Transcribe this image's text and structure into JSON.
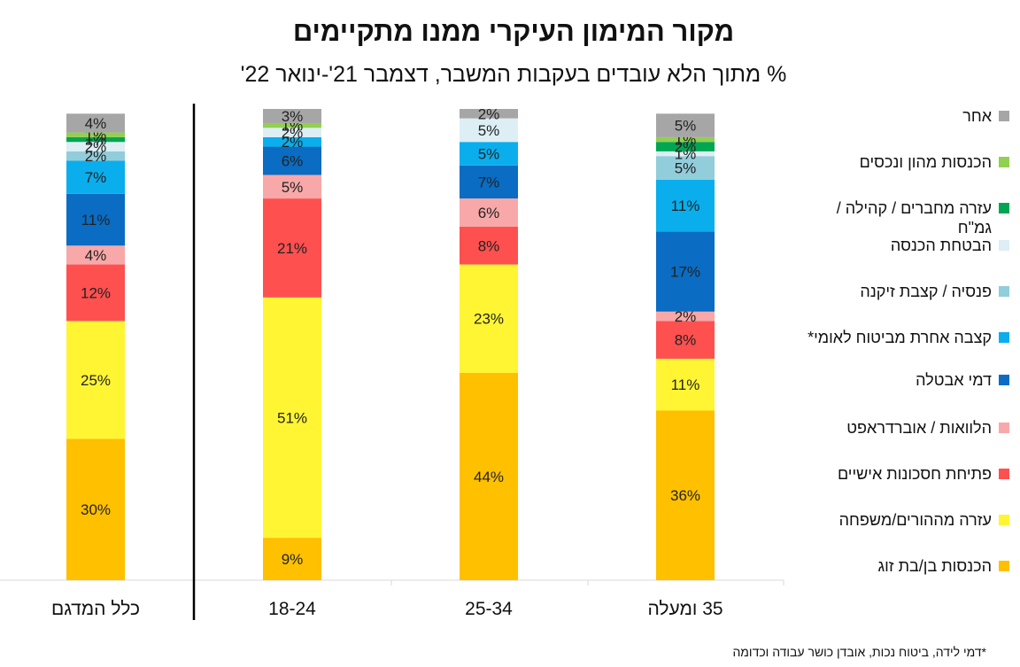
{
  "chart_data": {
    "type": "bar",
    "stacked": true,
    "title": "מקור המימון העיקרי ממנו מתקיימים",
    "subtitle": "% מתוך הלא עובדים בעקבות המשבר, דצמבר 21'-ינואר 22'",
    "categories": [
      "כלל המדגם",
      "18-24",
      "25-34",
      "35 ומעלה"
    ],
    "ylim": [
      0,
      100
    ],
    "legend_position": "right",
    "series": [
      {
        "name": "הכנסות בן/בת זוג",
        "color": "#FFC000",
        "values": [
          30,
          9,
          44,
          36
        ]
      },
      {
        "name": "עזרה מההורים/משפחה",
        "color": "#FFF533",
        "values": [
          25,
          51,
          23,
          11
        ]
      },
      {
        "name": "פתיחת חסכונות אישיים",
        "color": "#FF5050",
        "values": [
          12,
          21,
          8,
          8
        ]
      },
      {
        "name": "הלוואות / אוברדראפט",
        "color": "#F8A8A8",
        "values": [
          4,
          5,
          6,
          2
        ]
      },
      {
        "name": "דמי אבטלה",
        "color": "#0A6CC2",
        "values": [
          11,
          6,
          7,
          17
        ]
      },
      {
        "name": "קצבה אחרת מביטוח לאומי*",
        "color": "#0AAEEC",
        "values": [
          7,
          2,
          5,
          11
        ]
      },
      {
        "name": "פנסיה / קצבת זיקנה",
        "color": "#92CDDB",
        "values": [
          2,
          0,
          0,
          5
        ]
      },
      {
        "name": "הבטחת הכנסה",
        "color": "#DDEEF5",
        "values": [
          2,
          2,
          5,
          1
        ]
      },
      {
        "name": "עזרה מחברים / קהילה / גמ\"ח",
        "color": "#00A651",
        "values": [
          1,
          0,
          0,
          2
        ]
      },
      {
        "name": "הכנסות מהון ונכסים",
        "color": "#92D050",
        "values": [
          1,
          1,
          0,
          1
        ]
      },
      {
        "name": "אחר",
        "color": "#A6A6A6",
        "values": [
          4,
          3,
          2,
          5
        ]
      }
    ],
    "value_labels": {
      "unit": "%",
      "hidden": [
        {
          "series": 6,
          "category": 1
        },
        {
          "series": 6,
          "category": 2
        },
        {
          "series": 8,
          "category": 1
        },
        {
          "series": 8,
          "category": 2
        },
        {
          "series": 9,
          "category": 2
        }
      ]
    }
  },
  "footnote": "*דמי לידה, ביטוח נכות, אובדן כושר עבודה וכדומה"
}
